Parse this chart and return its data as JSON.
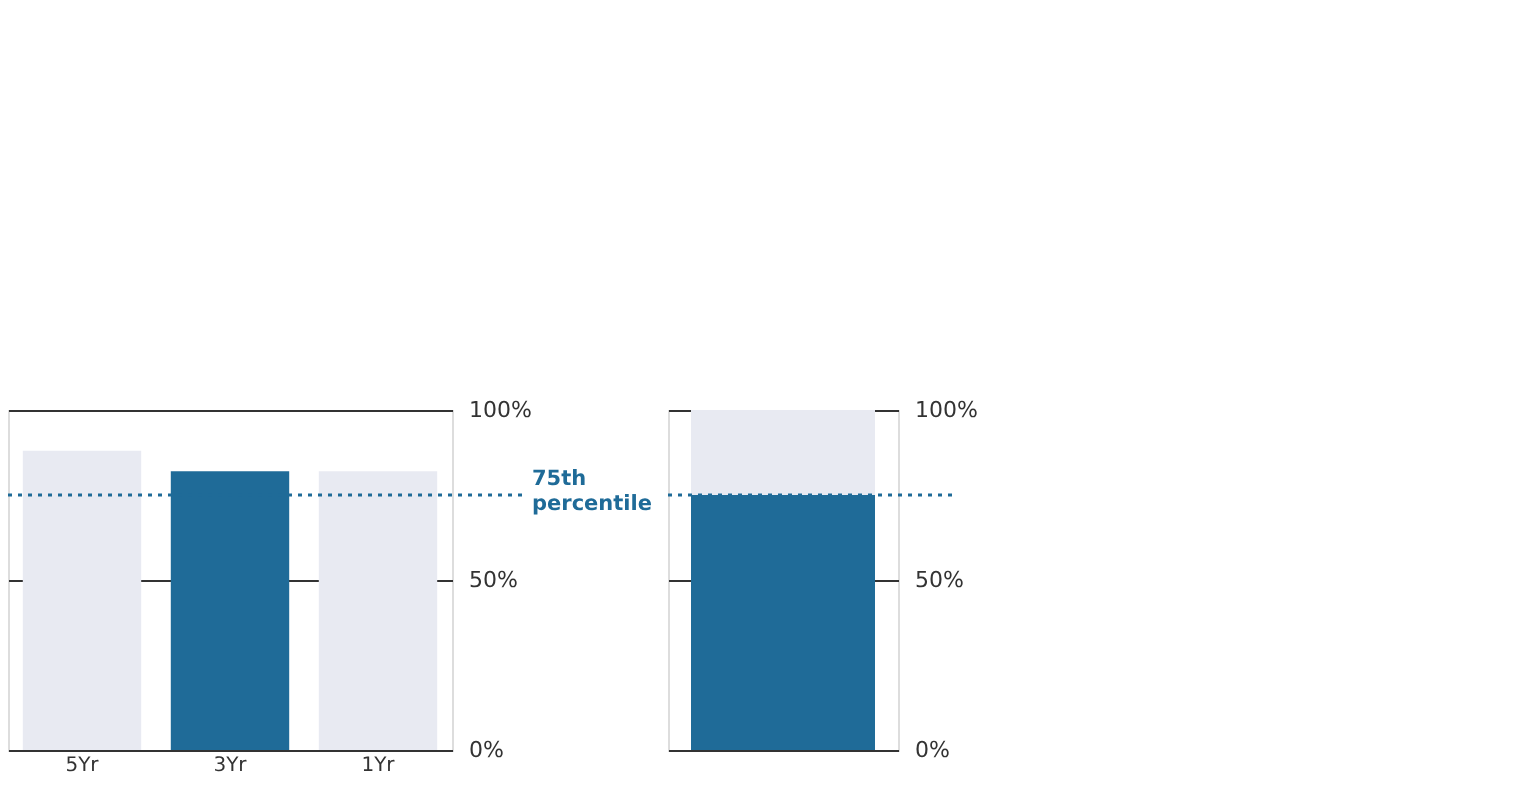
{
  "chart_data": [
    {
      "type": "bar",
      "categories": [
        "5Yr",
        "3Yr",
        "1Yr"
      ],
      "values": [
        88,
        82,
        82
      ],
      "colors": [
        "#e8eaf2",
        "#1f6b98",
        "#e8eaf2"
      ],
      "ylim": [
        0,
        100
      ],
      "yticks": [
        {
          "value": 0,
          "label": "0%"
        },
        {
          "value": 50,
          "label": "50%"
        },
        {
          "value": 100,
          "label": "100%"
        }
      ],
      "grid": "y",
      "ref_lines": [
        {
          "axis": "y",
          "value": 75,
          "label": "75th percentile",
          "color": "#1f6b98",
          "line_style": "dotted"
        }
      ]
    },
    {
      "type": "bar",
      "categories": [
        null
      ],
      "stacked": true,
      "series": [
        {
          "color": "#1f6b98",
          "values": [
            75
          ]
        },
        {
          "color": "#e8eaf2",
          "values": [
            25
          ]
        }
      ],
      "ylim": [
        0,
        100
      ],
      "yticks": [
        {
          "value": 0,
          "label": "0%"
        },
        {
          "value": 50,
          "label": "50%"
        },
        {
          "value": 100,
          "label": "100%"
        }
      ],
      "grid": "y",
      "tick_labels": "y",
      "ref_lines": [
        {
          "axis": "y",
          "value": 75,
          "color": "#1f6b98",
          "line_style": "dotted"
        }
      ]
    }
  ]
}
